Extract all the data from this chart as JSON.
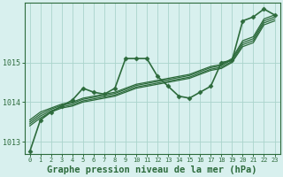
{
  "xlabel": "Graphe pression niveau de la mer (hPa)",
  "bg_color": "#d8f0ee",
  "plot_bg_color": "#d8f0ee",
  "grid_color": "#aad4cc",
  "line_color": "#2d6b3c",
  "ylim": [
    1012.7,
    1016.5
  ],
  "xlim": [
    -0.5,
    23.5
  ],
  "yticks": [
    1013,
    1014,
    1015
  ],
  "xticks": [
    0,
    1,
    2,
    3,
    4,
    5,
    6,
    7,
    8,
    9,
    10,
    11,
    12,
    13,
    14,
    15,
    16,
    17,
    18,
    19,
    20,
    21,
    22,
    23
  ],
  "lines": [
    {
      "data": [
        1012.75,
        1013.55,
        1013.75,
        1013.9,
        1014.05,
        1014.35,
        1014.25,
        1014.2,
        1014.35,
        1015.1,
        1015.1,
        1015.1,
        1014.65,
        1014.4,
        1014.15,
        1014.1,
        1014.25,
        1014.4,
        1015.0,
        1015.05,
        1016.05,
        1016.15,
        1016.35,
        1016.2
      ],
      "marker": true,
      "lw": 1.2
    },
    {
      "data": [
        1013.55,
        1013.75,
        1013.85,
        1013.95,
        1014.0,
        1014.1,
        1014.15,
        1014.2,
        1014.25,
        1014.35,
        1014.45,
        1014.5,
        1014.55,
        1014.6,
        1014.65,
        1014.7,
        1014.8,
        1014.9,
        1014.95,
        1015.1,
        1015.55,
        1015.65,
        1016.1,
        1016.2
      ],
      "marker": false,
      "lw": 0.9
    },
    {
      "data": [
        1013.5,
        1013.7,
        1013.82,
        1013.92,
        1013.97,
        1014.07,
        1014.12,
        1014.17,
        1014.22,
        1014.32,
        1014.42,
        1014.47,
        1014.52,
        1014.57,
        1014.62,
        1014.67,
        1014.77,
        1014.87,
        1014.92,
        1015.07,
        1015.5,
        1015.6,
        1016.05,
        1016.15
      ],
      "marker": false,
      "lw": 0.9
    },
    {
      "data": [
        1013.45,
        1013.65,
        1013.78,
        1013.88,
        1013.93,
        1014.03,
        1014.08,
        1014.13,
        1014.18,
        1014.28,
        1014.38,
        1014.43,
        1014.48,
        1014.53,
        1014.58,
        1014.63,
        1014.73,
        1014.83,
        1014.88,
        1015.03,
        1015.45,
        1015.55,
        1016.0,
        1016.1
      ],
      "marker": false,
      "lw": 0.9
    },
    {
      "data": [
        1013.4,
        1013.6,
        1013.75,
        1013.85,
        1013.9,
        1014.0,
        1014.05,
        1014.1,
        1014.15,
        1014.25,
        1014.35,
        1014.4,
        1014.45,
        1014.5,
        1014.55,
        1014.6,
        1014.7,
        1014.8,
        1014.85,
        1015.0,
        1015.4,
        1015.5,
        1015.95,
        1016.05
      ],
      "marker": false,
      "lw": 0.9
    }
  ],
  "marker_style": "D",
  "marker_size": 2.5,
  "tick_fontsize": 6,
  "label_fontsize": 7.5
}
